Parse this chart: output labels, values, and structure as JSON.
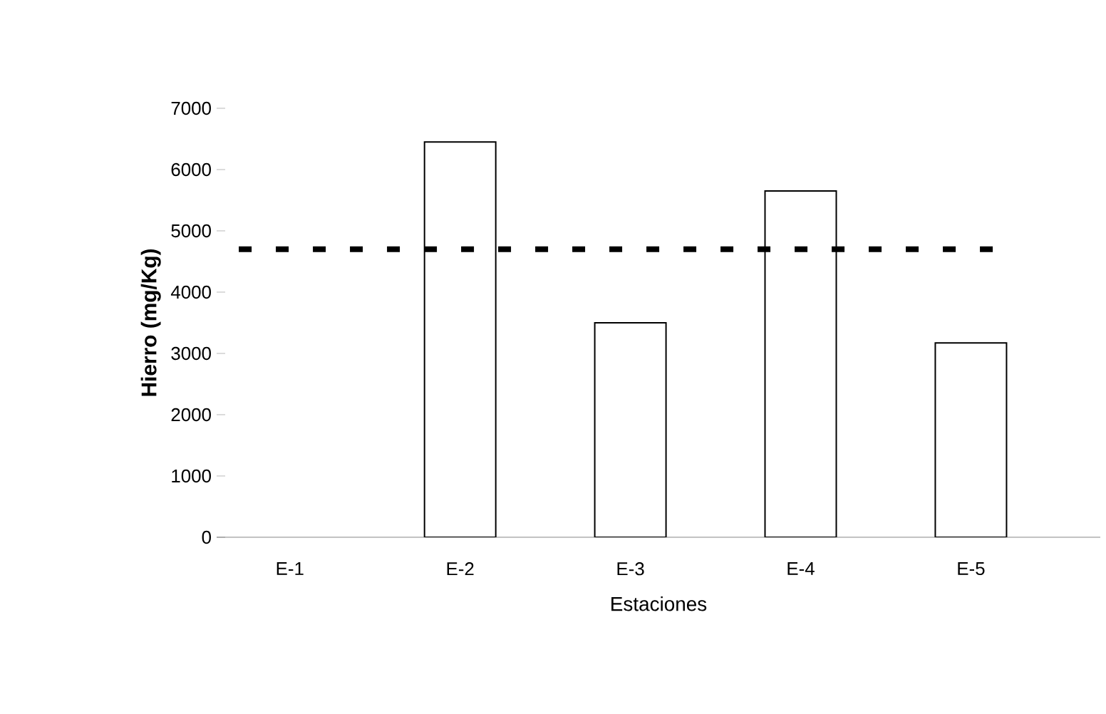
{
  "chart_data": {
    "type": "bar",
    "xlabel": "Estaciones",
    "ylabel": "Hierro (mg/Kg)",
    "categories": [
      "E-1",
      "E-2",
      "E-3",
      "E-4",
      "E-5"
    ],
    "values": [
      null,
      6450,
      3500,
      5650,
      3170
    ],
    "color": "#ffffff",
    "ylim": [
      0,
      7000
    ],
    "yticks": [
      0,
      1000,
      2000,
      3000,
      4000,
      5000,
      6000,
      7000
    ],
    "ref_lines": [
      {
        "axis": "y",
        "value": 4700,
        "color": "#000000",
        "line_style": "dashed"
      }
    ],
    "grid": false
  }
}
